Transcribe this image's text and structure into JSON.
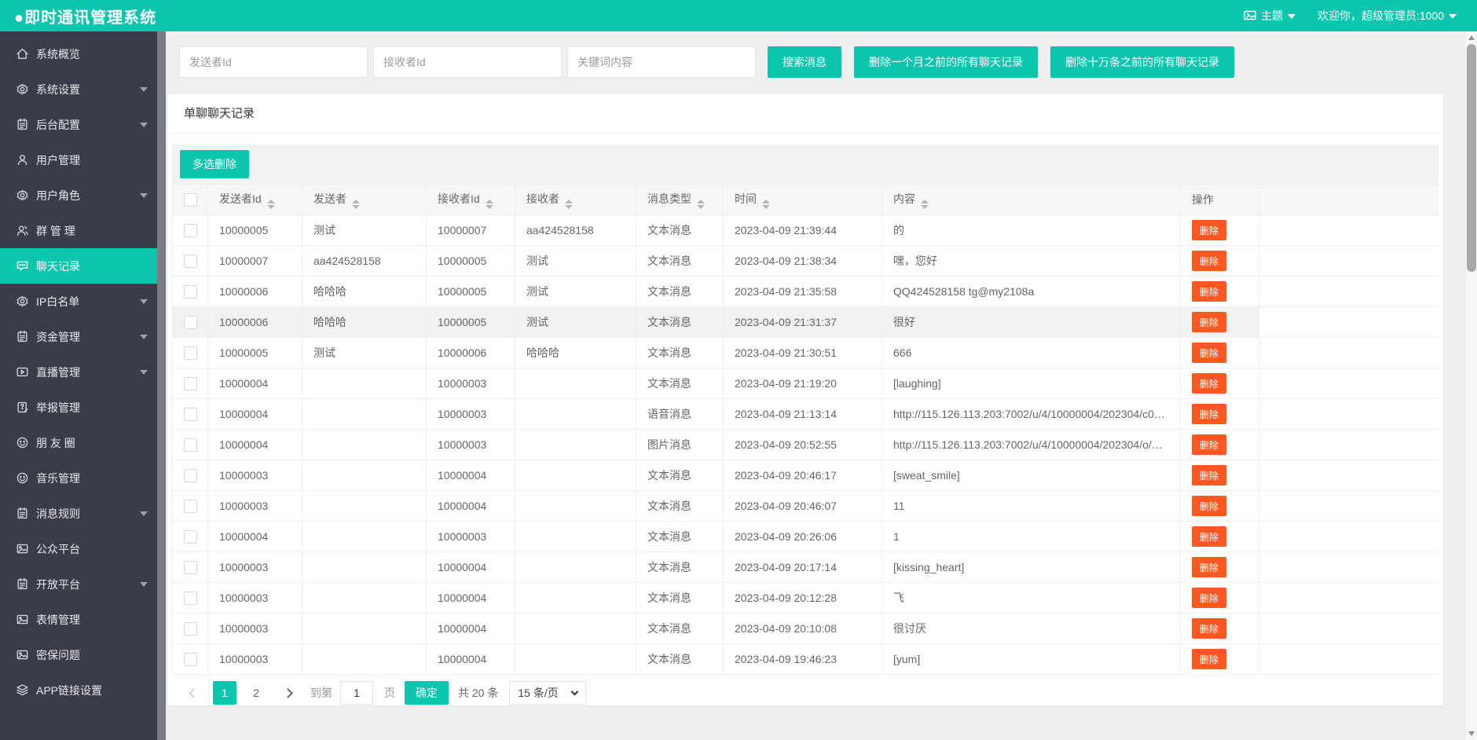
{
  "colors": {
    "accent": "#0bc5af",
    "danger": "#ff5722",
    "sidebar_bg": "#393d49"
  },
  "topbar": {
    "title": "●即时通讯管理系统",
    "theme_label": "主题",
    "welcome": "欢迎你，超级管理员:1000"
  },
  "sidebar": {
    "items": [
      {
        "label": "系统概览",
        "icon": "home-icon",
        "expandable": false,
        "active": false
      },
      {
        "label": "系统设置",
        "icon": "gear-icon",
        "expandable": true,
        "active": false
      },
      {
        "label": "后台配置",
        "icon": "form-icon",
        "expandable": true,
        "active": false
      },
      {
        "label": "用户管理",
        "icon": "user-icon",
        "expandable": false,
        "active": false
      },
      {
        "label": "用户角色",
        "icon": "gear-icon",
        "expandable": true,
        "active": false
      },
      {
        "label": "群 管 理",
        "icon": "group-icon",
        "expandable": false,
        "active": false
      },
      {
        "label": "聊天记录",
        "icon": "chat-icon",
        "expandable": false,
        "active": true
      },
      {
        "label": "IP白名单",
        "icon": "gear-icon",
        "expandable": true,
        "active": false
      },
      {
        "label": "资金管理",
        "icon": "form-icon",
        "expandable": true,
        "active": false
      },
      {
        "label": "直播管理",
        "icon": "video-icon",
        "expandable": true,
        "active": false
      },
      {
        "label": "举报管理",
        "icon": "report-icon",
        "expandable": false,
        "active": false
      },
      {
        "label": "朋 友 圈",
        "icon": "smiley-icon",
        "expandable": false,
        "active": false
      },
      {
        "label": "音乐管理",
        "icon": "smiley-icon",
        "expandable": false,
        "active": false
      },
      {
        "label": "消息规则",
        "icon": "form-icon",
        "expandable": true,
        "active": false
      },
      {
        "label": "公众平台",
        "icon": "image-icon",
        "expandable": false,
        "active": false
      },
      {
        "label": "开放平台",
        "icon": "form-icon",
        "expandable": true,
        "active": false
      },
      {
        "label": "表情管理",
        "icon": "image-icon",
        "expandable": false,
        "active": false
      },
      {
        "label": "密保问题",
        "icon": "image-icon",
        "expandable": false,
        "active": false
      },
      {
        "label": "APP链接设置",
        "icon": "layers-icon",
        "expandable": false,
        "active": false
      }
    ]
  },
  "search": {
    "inputs": [
      {
        "placeholder": "发送者Id"
      },
      {
        "placeholder": "接收者Id"
      },
      {
        "placeholder": "关键词内容"
      }
    ],
    "buttons": [
      {
        "label": "搜索消息"
      },
      {
        "label": "删除一个月之前的所有聊天记录"
      },
      {
        "label": "删除十万条之前的所有聊天记录"
      }
    ]
  },
  "panel": {
    "title": "单聊聊天记录",
    "multi_delete_label": "多选删除"
  },
  "table": {
    "action_label": "删除",
    "columns": [
      {
        "label": "发送者Id",
        "sortable": true
      },
      {
        "label": "发送者",
        "sortable": true
      },
      {
        "label": "接收者Id",
        "sortable": true
      },
      {
        "label": "接收者",
        "sortable": true
      },
      {
        "label": "消息类型",
        "sortable": true
      },
      {
        "label": "时间",
        "sortable": true
      },
      {
        "label": "内容",
        "sortable": true
      },
      {
        "label": "操作",
        "sortable": false
      }
    ],
    "rows": [
      {
        "sender_id": "10000005",
        "sender": "测试",
        "receiver_id": "10000007",
        "receiver": "aa424528158",
        "type": "文本消息",
        "time": "2023-04-09 21:39:44",
        "content": "的",
        "highlighted": false
      },
      {
        "sender_id": "10000007",
        "sender": "aa424528158",
        "receiver_id": "10000005",
        "receiver": "测试",
        "type": "文本消息",
        "time": "2023-04-09 21:38:34",
        "content": "嘿，您好",
        "highlighted": false
      },
      {
        "sender_id": "10000006",
        "sender": "哈哈哈",
        "receiver_id": "10000005",
        "receiver": "测试",
        "type": "文本消息",
        "time": "2023-04-09 21:35:58",
        "content": "QQ424528158 tg@my2108a",
        "highlighted": false
      },
      {
        "sender_id": "10000006",
        "sender": "哈哈哈",
        "receiver_id": "10000005",
        "receiver": "测试",
        "type": "文本消息",
        "time": "2023-04-09 21:31:37",
        "content": "很好",
        "highlighted": true
      },
      {
        "sender_id": "10000005",
        "sender": "测试",
        "receiver_id": "10000006",
        "receiver": "哈哈哈",
        "type": "文本消息",
        "time": "2023-04-09 21:30:51",
        "content": "666",
        "highlighted": false
      },
      {
        "sender_id": "10000004",
        "sender": "",
        "receiver_id": "10000003",
        "receiver": "",
        "type": "文本消息",
        "time": "2023-04-09 21:19:20",
        "content": "[laughing]",
        "highlighted": false
      },
      {
        "sender_id": "10000004",
        "sender": "",
        "receiver_id": "10000003",
        "receiver": "",
        "type": "语音消息",
        "time": "2023-04-09 21:13:14",
        "content": "http://115.126.113.203:7002/u/4/10000004/202304/c0…",
        "highlighted": false
      },
      {
        "sender_id": "10000004",
        "sender": "",
        "receiver_id": "10000003",
        "receiver": "",
        "type": "图片消息",
        "time": "2023-04-09 20:52:55",
        "content": "http://115.126.113.203:7002/u/4/10000004/202304/o/…",
        "highlighted": false
      },
      {
        "sender_id": "10000003",
        "sender": "",
        "receiver_id": "10000004",
        "receiver": "",
        "type": "文本消息",
        "time": "2023-04-09 20:46:17",
        "content": "[sweat_smile]",
        "highlighted": false
      },
      {
        "sender_id": "10000003",
        "sender": "",
        "receiver_id": "10000004",
        "receiver": "",
        "type": "文本消息",
        "time": "2023-04-09 20:46:07",
        "content": "11",
        "highlighted": false
      },
      {
        "sender_id": "10000004",
        "sender": "",
        "receiver_id": "10000003",
        "receiver": "",
        "type": "文本消息",
        "time": "2023-04-09 20:26:06",
        "content": "1",
        "highlighted": false
      },
      {
        "sender_id": "10000003",
        "sender": "",
        "receiver_id": "10000004",
        "receiver": "",
        "type": "文本消息",
        "time": "2023-04-09 20:17:14",
        "content": "[kissing_heart]",
        "highlighted": false
      },
      {
        "sender_id": "10000003",
        "sender": "",
        "receiver_id": "10000004",
        "receiver": "",
        "type": "文本消息",
        "time": "2023-04-09 20:12:28",
        "content": "飞",
        "highlighted": false
      },
      {
        "sender_id": "10000003",
        "sender": "",
        "receiver_id": "10000004",
        "receiver": "",
        "type": "文本消息",
        "time": "2023-04-09 20:10:08",
        "content": "很讨厌",
        "highlighted": false
      },
      {
        "sender_id": "10000003",
        "sender": "",
        "receiver_id": "10000004",
        "receiver": "",
        "type": "文本消息",
        "time": "2023-04-09 19:46:23",
        "content": "[yum]",
        "highlighted": false
      }
    ]
  },
  "pagination": {
    "pages": [
      "1",
      "2"
    ],
    "active_page": "1",
    "jump_label": "到第",
    "jump_value": "1",
    "jump_unit": "页",
    "confirm_label": "确定",
    "total_label": "共 20 条",
    "page_size_label": "15 条/页"
  }
}
